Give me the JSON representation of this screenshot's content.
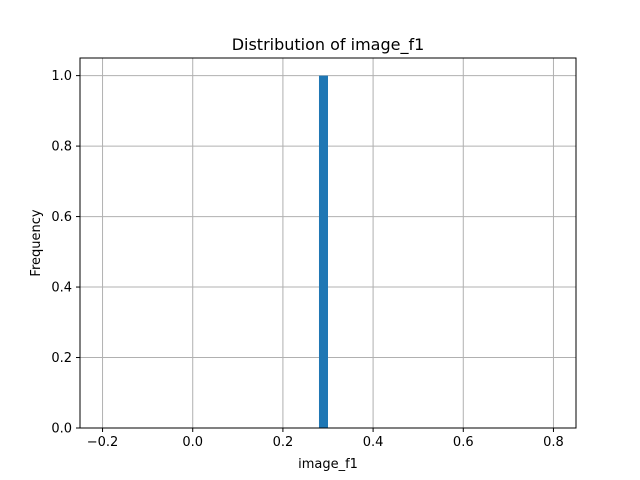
{
  "chart_data": {
    "type": "bar",
    "title": "Distribution of image_f1",
    "xlabel": "image_f1",
    "ylabel": "Frequency",
    "xlim": [
      -0.25,
      0.85
    ],
    "ylim": [
      0,
      1.05
    ],
    "x_ticks": [
      -0.2,
      0.0,
      0.2,
      0.4,
      0.6,
      0.8
    ],
    "x_tick_labels": [
      "−0.2",
      "0.0",
      "0.2",
      "0.4",
      "0.6",
      "0.8"
    ],
    "y_ticks": [
      0.0,
      0.2,
      0.4,
      0.6,
      0.8,
      1.0
    ],
    "y_tick_labels": [
      "0.0",
      "0.2",
      "0.4",
      "0.6",
      "0.8",
      "1.0"
    ],
    "grid": true,
    "bins": [
      {
        "x_start": 0.28,
        "x_end": 0.3,
        "count": 1
      }
    ],
    "bar_color": "#1f77b4"
  }
}
